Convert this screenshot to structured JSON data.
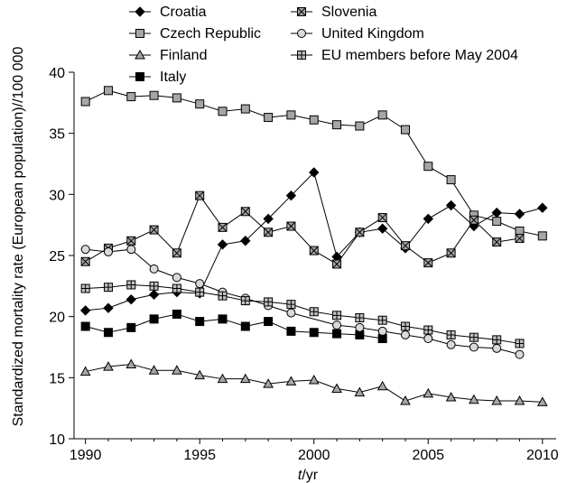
{
  "chart_data": {
    "type": "line",
    "title": "",
    "xlabel_italic": "t",
    "xlabel_rest": "/yr",
    "ylabel": "Standardized mortality rate (European population)//100 000",
    "xlim": [
      1989.5,
      2010.6
    ],
    "ylim": [
      10,
      40
    ],
    "xticks": [
      1990,
      1995,
      2000,
      2005,
      2010
    ],
    "yticks": [
      10,
      15,
      20,
      25,
      30,
      35,
      40
    ],
    "legend_placement": "top",
    "series": [
      {
        "name": "Croatia",
        "marker": "diamond",
        "color": "#000000",
        "x": [
          1990,
          1991,
          1992,
          1993,
          1994,
          1995,
          1996,
          1997,
          1998,
          1999,
          2000,
          2001,
          2002,
          2003,
          2004,
          2005,
          2006,
          2007,
          2008,
          2009,
          2010
        ],
        "y": [
          20.5,
          20.7,
          21.4,
          21.8,
          22.0,
          21.9,
          25.9,
          26.2,
          28.0,
          29.9,
          31.8,
          24.9,
          26.9,
          27.2,
          25.6,
          28.0,
          29.1,
          27.4,
          28.5,
          28.4,
          28.9
        ]
      },
      {
        "name": "Czech Republic",
        "marker": "square",
        "color": "#a6a6a6",
        "x": [
          1990,
          1991,
          1992,
          1993,
          1994,
          1995,
          1996,
          1997,
          1998,
          1999,
          2000,
          2001,
          2002,
          2003,
          2004,
          2005,
          2006,
          2007,
          2008,
          2009,
          2010
        ],
        "y": [
          37.6,
          38.5,
          38.0,
          38.1,
          37.9,
          37.4,
          36.8,
          37.0,
          36.3,
          36.5,
          36.1,
          35.7,
          35.6,
          36.5,
          35.3,
          32.3,
          31.2,
          28.3,
          27.8,
          27.0,
          26.6
        ]
      },
      {
        "name": "Finland",
        "marker": "triangle",
        "color": "#a6a6a6",
        "x": [
          1990,
          1991,
          1992,
          1993,
          1994,
          1995,
          1996,
          1997,
          1998,
          1999,
          2000,
          2001,
          2002,
          2003,
          2004,
          2005,
          2006,
          2007,
          2008,
          2009,
          2010
        ],
        "y": [
          15.5,
          15.9,
          16.1,
          15.6,
          15.6,
          15.2,
          14.9,
          14.9,
          14.5,
          14.7,
          14.8,
          14.1,
          13.8,
          14.3,
          13.1,
          13.7,
          13.4,
          13.2,
          13.1,
          13.1,
          13.0
        ]
      },
      {
        "name": "Italy",
        "marker": "square",
        "color": "#000000",
        "x": [
          1990,
          1991,
          1992,
          1993,
          1994,
          1995,
          1996,
          1997,
          1998,
          1999,
          2000,
          2001,
          2002,
          2003
        ],
        "y": [
          19.2,
          18.7,
          19.1,
          19.8,
          20.2,
          19.6,
          19.8,
          19.2,
          19.6,
          18.8,
          18.7,
          18.6,
          18.5,
          18.2
        ]
      },
      {
        "name": "Slovenia",
        "marker": "square-x",
        "color": "#a6a6a6",
        "x": [
          1990,
          1991,
          1992,
          1993,
          1994,
          1995,
          1996,
          1997,
          1998,
          1999,
          2000,
          2001,
          2002,
          2003,
          2004,
          2005,
          2006,
          2007,
          2008,
          2009
        ],
        "y": [
          24.5,
          25.6,
          26.2,
          27.1,
          25.2,
          29.9,
          27.3,
          28.6,
          26.9,
          27.4,
          25.4,
          24.3,
          26.9,
          28.1,
          25.8,
          24.4,
          25.2,
          27.9,
          26.1,
          26.4
        ]
      },
      {
        "name": "United Kingdom",
        "marker": "circle",
        "color": "#d9d9d9",
        "x": [
          1990,
          1991,
          1992,
          1993,
          1994,
          1995,
          1996,
          1997,
          1998,
          1999,
          2001,
          2002,
          2003,
          2004,
          2005,
          2006,
          2007,
          2008,
          2009
        ],
        "y": [
          25.5,
          25.3,
          25.5,
          23.9,
          23.2,
          22.7,
          22.0,
          21.5,
          20.9,
          20.3,
          19.3,
          19.1,
          18.8,
          18.5,
          18.2,
          17.7,
          17.5,
          17.4,
          16.9
        ]
      },
      {
        "name": "EU members before May 2004",
        "marker": "square-plus",
        "color": "#bfbfbf",
        "x": [
          1990,
          1991,
          1992,
          1993,
          1994,
          1995,
          1996,
          1997,
          1998,
          1999,
          2000,
          2001,
          2002,
          2003,
          2004,
          2005,
          2006,
          2007,
          2008,
          2009
        ],
        "y": [
          22.3,
          22.4,
          22.6,
          22.5,
          22.3,
          22.0,
          21.7,
          21.3,
          21.2,
          21.0,
          20.4,
          20.1,
          19.9,
          19.7,
          19.2,
          18.9,
          18.5,
          18.3,
          18.1,
          17.8
        ]
      }
    ]
  }
}
